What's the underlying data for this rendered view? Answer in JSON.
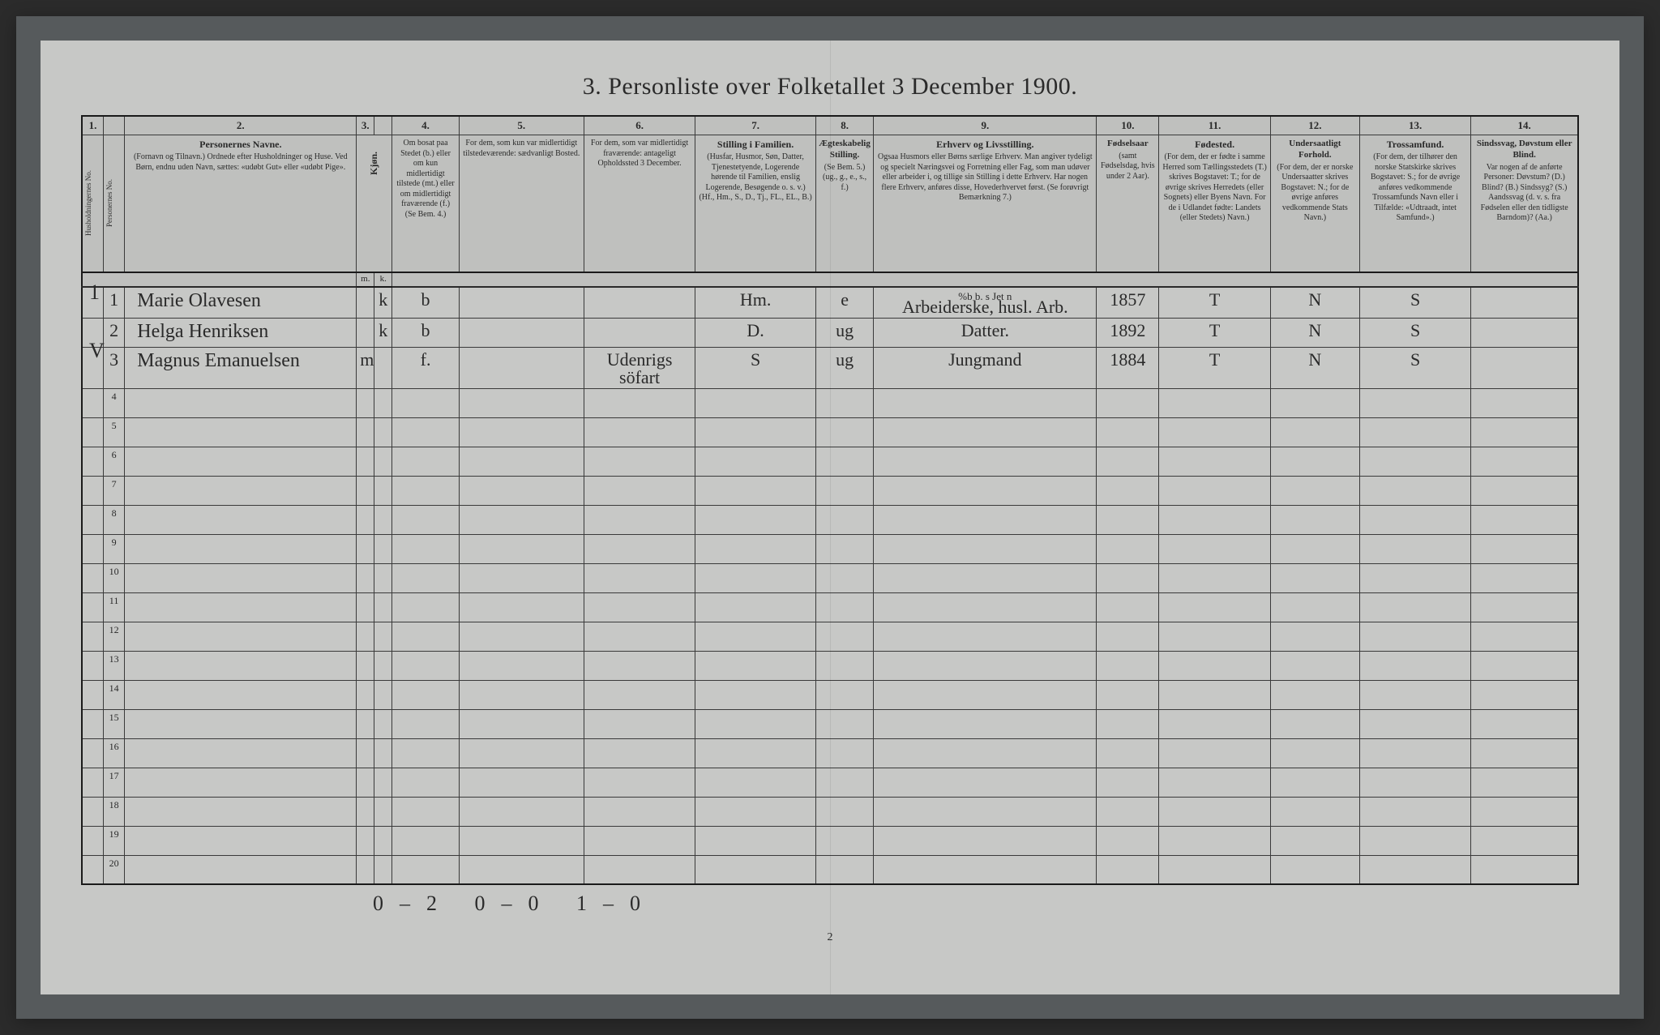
{
  "colors": {
    "body_bg": "#2b2b2b",
    "outer_bg": "#565a5c",
    "page_bg": "#c7c8c6",
    "ink": "#2a2a2a",
    "border": "#3a3a3a",
    "border_thick": "#1a1a1a",
    "header_bg": "#bfc0be"
  },
  "title": "3. Personliste over Folketallet 3 December 1900.",
  "col_nums": [
    "1.",
    "",
    "2.",
    "3.",
    "",
    "4.",
    "5.",
    "6.",
    "7.",
    "8.",
    "9.",
    "10.",
    "11.",
    "12.",
    "13.",
    "14."
  ],
  "headers": {
    "c1a": "Husholdningernes No.",
    "c1b": "Personernes No.",
    "c2_bold": "Personernes Navne.",
    "c2_sub": "(Fornavn og Tilnavn.)\nOrdnede efter Husholdninger og Huse.\nVed Børn, endnu uden Navn, sættes: «udøbt Gut» eller «udøbt Pige».",
    "c3_bold": "Kjøn.",
    "c3_m": "m.",
    "c3_k": "k.",
    "c4": "Om bosat paa Stedet (b.) eller om kun midlertidigt tilstede (mt.) eller om midlertidigt fraværende (f.)\n(Se Bem. 4.)",
    "c5": "For dem, som kun var midlertidigt tilstedeværende:\nsædvanligt Bosted.",
    "c6": "For dem, som var midlertidigt fraværende:\nantageligt Opholdssted 3 December.",
    "c7_bold": "Stilling i Familien.",
    "c7_sub": "(Husfar, Husmor, Søn, Datter, Tjenestetyende, Logerende hørende til Familien, enslig Logerende, Besøgende o. s. v.)\n(Hf., Hm., S., D., Tj., FL., EL., B.)",
    "c8_bold": "Ægteskabelig Stilling.",
    "c8_sub": "(Se Bem. 5.)\n(ug., g., e., s., f.)",
    "c9_bold": "Erhverv og Livsstilling.",
    "c9_sub": "Ogsaa Husmors eller Børns særlige Erhverv. Man angiver tydeligt og specielt Næringsvei og Forretning eller Fag, som man udøver eller arbeider i, og tillige sin Stilling i dette Erhverv. Har nogen flere Erhverv, anføres disse, Hovederhvervet først.\n(Se forøvrigt Bemærkning 7.)",
    "c10_bold": "Fødselsaar",
    "c10_sub": "(samt Fødselsdag, hvis under 2 Aar).",
    "c11_bold": "Fødested.",
    "c11_sub": "(For dem, der er fødte i samme Herred som Tællingsstedets (T.) skrives Bogstavet: T.; for de øvrige skrives Herredets (eller Sognets) eller Byens Navn. For de i Udlandet fødte: Landets (eller Stedets) Navn.)",
    "c12_bold": "Undersaatligt Forhold.",
    "c12_sub": "(For dem, der er norske Undersaatter skrives Bogstavet: N.; for de øvrige anføres vedkommende Stats Navn.)",
    "c13_bold": "Trossamfund.",
    "c13_sub": "(For dem, der tilhører den norske Statskirke skrives Bogstavet: S.; for de øvrige anføres vedkommende Trossamfunds Navn eller i Tilfælde: «Udtraadt, intet Samfund».)",
    "c14_bold": "Sindssvag, Døvstum eller Blind.",
    "c14_sub": "Var nogen af de anførte Personer:\nDøvstum? (D.)\nBlind? (B.)\nSindssyg? (S.)\nAandssvag (d. v. s. fra Fødselen eller den tidligste Barndom)? (Aa.)"
  },
  "margin_marks": [
    "1",
    "V"
  ],
  "rows": [
    {
      "hh": "",
      "pn": "1",
      "name": "Marie Olavesen",
      "m": "",
      "k": "k",
      "c4": "b",
      "c5": "",
      "c6": "",
      "c7": "Hm.",
      "c8": "e",
      "c9": "Arbeiderske, husl. Arb.",
      "c9_sup": "%b b. s Jet n",
      "c10": "1857",
      "c11": "T",
      "c12": "N",
      "c13": "S",
      "c14": ""
    },
    {
      "hh": "",
      "pn": "2",
      "name": "Helga Henriksen",
      "m": "",
      "k": "k",
      "c4": "b",
      "c5": "",
      "c6": "",
      "c7": "D.",
      "c8": "ug",
      "c9": "Datter.",
      "c10": "1892",
      "c11": "T",
      "c12": "N",
      "c13": "S",
      "c14": ""
    },
    {
      "hh": "",
      "pn": "3",
      "name": "Magnus Emanuelsen",
      "m": "m",
      "k": "",
      "c4": "f.",
      "c5": "",
      "c6": "Udenrigs söfart",
      "c7": "S",
      "c8": "ug",
      "c9": "Jungmand",
      "c10": "1884",
      "c11": "T",
      "c12": "N",
      "c13": "S",
      "c14": ""
    }
  ],
  "empty_row_labels": [
    "4",
    "5",
    "6",
    "7",
    "8",
    "9",
    "10",
    "11",
    "12",
    "13",
    "14",
    "15",
    "16",
    "17",
    "18",
    "19",
    "20"
  ],
  "footer_nums": "0–2   0–0   1–0",
  "page_num": "2"
}
